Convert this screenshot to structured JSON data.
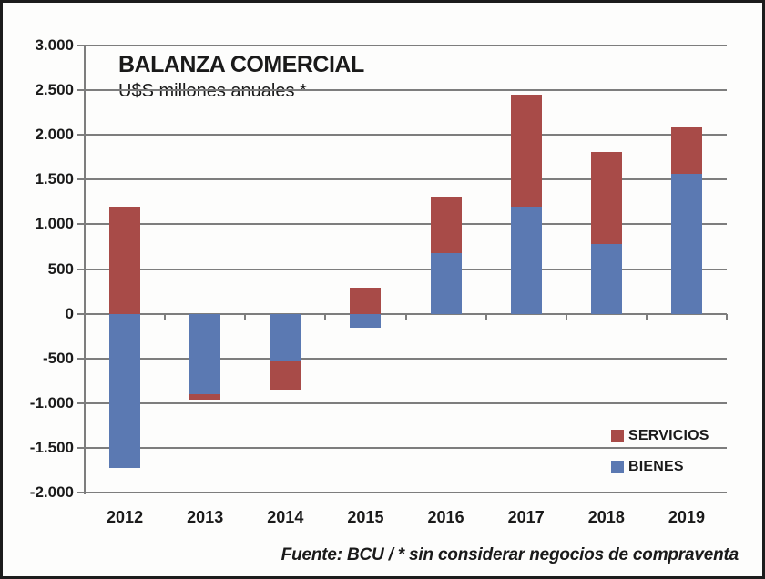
{
  "chart_data": {
    "type": "bar",
    "stacked": true,
    "title": "BALANZA COMERCIAL",
    "subtitle": "U$S millones anuales *",
    "categories": [
      "2012",
      "2013",
      "2014",
      "2015",
      "2016",
      "2017",
      "2018",
      "2019"
    ],
    "series": [
      {
        "name": "BIENES",
        "color": "#5B79B2",
        "values": [
          -1730,
          -900,
          -520,
          -160,
          680,
          1200,
          780,
          1560
        ]
      },
      {
        "name": "SERVICIOS",
        "color": "#A84B48",
        "values": [
          1200,
          -60,
          -330,
          290,
          630,
          1250,
          1030,
          520
        ]
      }
    ],
    "ylim": [
      -2000,
      3000
    ],
    "ytick_interval": 500,
    "ytick_labels": [
      "3.000",
      "2.500",
      "2.000",
      "1.500",
      "1.000",
      "500",
      "0",
      "-500",
      "-1.000",
      "-1.500",
      "-2.000"
    ],
    "grid": true,
    "legend_position": "inside-bottom-right",
    "legend_items": [
      {
        "label": "SERVICIOS"
      },
      {
        "label": "BIENES"
      }
    ],
    "footer": "Fuente: BCU / * sin considerar negocios de compraventa",
    "colors": {
      "gridline": "#7d7d7d",
      "text": "#1a1a1a",
      "frame": "#1c1c1c"
    }
  }
}
